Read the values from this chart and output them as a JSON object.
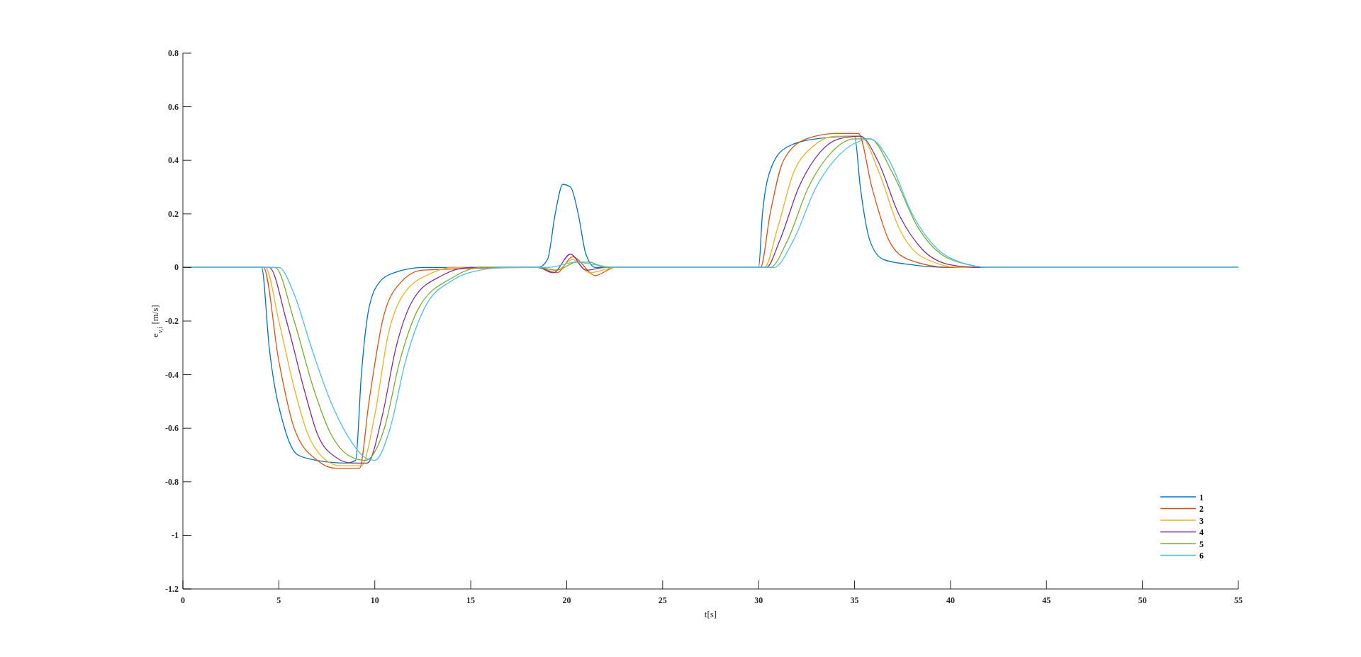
{
  "chart_data": {
    "type": "line",
    "xlabel": "t[s]",
    "ylabel": "e$_{v,i}$ [m/s]",
    "xlim": [
      0,
      55
    ],
    "xticks": [
      0,
      5,
      10,
      15,
      20,
      25,
      30,
      35,
      40,
      45,
      50,
      55
    ],
    "ylim": [
      -1.2,
      0.8
    ],
    "yticks": [
      -1.2,
      -1,
      -0.8,
      -0.6,
      -0.4,
      -0.2,
      0,
      0.2,
      0.4,
      0.6,
      0.8
    ],
    "grid": false,
    "legend": "bottom right",
    "line_style": "solid",
    "marker": "none",
    "series": [
      {
        "name": "1",
        "color": "#0072bd",
        "x": [
          0,
          4.1,
          4.5,
          5.3,
          6.0,
          7,
          8.5,
          9.0,
          9.3,
          9.7,
          10.3,
          11,
          12.5,
          18.5,
          19.0,
          19.4,
          19.8,
          20.2,
          20.6,
          21.0,
          21.5,
          30.0,
          30.2,
          30.7,
          31.5,
          33,
          35.0,
          35.3,
          35.8,
          36.5,
          38,
          40,
          55
        ],
        "values": [
          0,
          0,
          -0.3,
          -0.6,
          -0.7,
          -0.72,
          -0.73,
          -0.72,
          -0.4,
          -0.15,
          -0.05,
          -0.02,
          0,
          0,
          0.03,
          0.2,
          0.31,
          0.3,
          0.2,
          0.05,
          0,
          0,
          0.2,
          0.38,
          0.45,
          0.48,
          0.49,
          0.3,
          0.1,
          0.03,
          0.01,
          0,
          0
        ]
      },
      {
        "name": "2",
        "color": "#d95319",
        "x": [
          0,
          4.2,
          5.0,
          5.8,
          7,
          8,
          9.2,
          9.7,
          10.4,
          11.3,
          12.5,
          18.5,
          19.5,
          20.3,
          21.5,
          22.5,
          30.1,
          30.6,
          31.3,
          32.5,
          34,
          35.2,
          35.9,
          36.8,
          37.8,
          40,
          55
        ],
        "values": [
          0,
          0,
          -0.35,
          -0.6,
          -0.72,
          -0.75,
          -0.75,
          -0.5,
          -0.2,
          -0.06,
          -0.01,
          0,
          -0.02,
          0.04,
          -0.03,
          0,
          0,
          0.2,
          0.4,
          0.48,
          0.5,
          0.5,
          0.3,
          0.1,
          0.03,
          0,
          0
        ]
      },
      {
        "name": "3",
        "color": "#edb120",
        "x": [
          0,
          4.3,
          5.0,
          5.8,
          6.5,
          7.3,
          8.2,
          9.3,
          10,
          10.7,
          11.5,
          13,
          14,
          18.5,
          19.5,
          20.3,
          21.2,
          22.5,
          30.3,
          31,
          31.8,
          32.8,
          34,
          35.3,
          36.3,
          37.3,
          38.5,
          40.5,
          55
        ],
        "values": [
          0,
          0,
          -0.2,
          -0.45,
          -0.62,
          -0.71,
          -0.74,
          -0.74,
          -0.55,
          -0.25,
          -0.1,
          -0.02,
          0,
          0,
          -0.01,
          0.03,
          -0.02,
          0,
          0,
          0.15,
          0.35,
          0.45,
          0.49,
          0.49,
          0.35,
          0.15,
          0.04,
          0,
          0
        ]
      },
      {
        "name": "4",
        "color": "#7e2f8e",
        "x": [
          0,
          4.5,
          5.4,
          6.3,
          7.0,
          8.0,
          8.8,
          9.6,
          10.4,
          11.1,
          12,
          13.5,
          15,
          18.5,
          19.3,
          20.2,
          21,
          22,
          30.4,
          31.1,
          32.1,
          33.2,
          34.2,
          35.3,
          36.2,
          37.3,
          38.5,
          40,
          41.5,
          55
        ],
        "values": [
          0,
          0,
          -0.2,
          -0.45,
          -0.62,
          -0.71,
          -0.73,
          -0.73,
          -0.55,
          -0.3,
          -0.12,
          -0.03,
          0,
          0,
          -0.02,
          0.05,
          -0.01,
          0,
          0,
          0.1,
          0.3,
          0.43,
          0.48,
          0.49,
          0.4,
          0.2,
          0.07,
          0.01,
          0,
          0
        ]
      },
      {
        "name": "5",
        "color": "#77ac30",
        "x": [
          0,
          4.8,
          5.8,
          6.8,
          7.7,
          8.6,
          9.5,
          10.5,
          11.3,
          12.3,
          14,
          15.5,
          18.5,
          19.5,
          20.5,
          21.2,
          22,
          30.6,
          31.5,
          32.6,
          33.8,
          35,
          35.8,
          37,
          38.3,
          39.5,
          41,
          42,
          55
        ],
        "values": [
          0,
          0,
          -0.2,
          -0.45,
          -0.62,
          -0.7,
          -0.72,
          -0.6,
          -0.35,
          -0.15,
          -0.04,
          0,
          0,
          -0.01,
          0.02,
          0.02,
          0,
          0,
          0.1,
          0.3,
          0.43,
          0.48,
          0.48,
          0.35,
          0.15,
          0.05,
          0.01,
          0,
          0
        ]
      },
      {
        "name": "6",
        "color": "#4dbeee",
        "x": [
          0,
          5.0,
          5.8,
          6.7,
          7.7,
          8.6,
          9.5,
          10.0,
          10.8,
          11.6,
          12.6,
          14,
          15.5,
          17,
          19,
          20.5,
          21.5,
          22.5,
          30.8,
          31.8,
          33,
          34.2,
          35.2,
          35.8,
          36.8,
          38,
          39.3,
          40.5,
          42,
          55
        ],
        "values": [
          0,
          0,
          -0.1,
          -0.3,
          -0.5,
          -0.63,
          -0.71,
          -0.72,
          -0.6,
          -0.35,
          -0.15,
          -0.05,
          -0.01,
          0,
          0,
          0.02,
          0.01,
          0,
          0,
          0.1,
          0.3,
          0.42,
          0.47,
          0.48,
          0.4,
          0.2,
          0.07,
          0.02,
          0,
          0
        ]
      }
    ]
  }
}
